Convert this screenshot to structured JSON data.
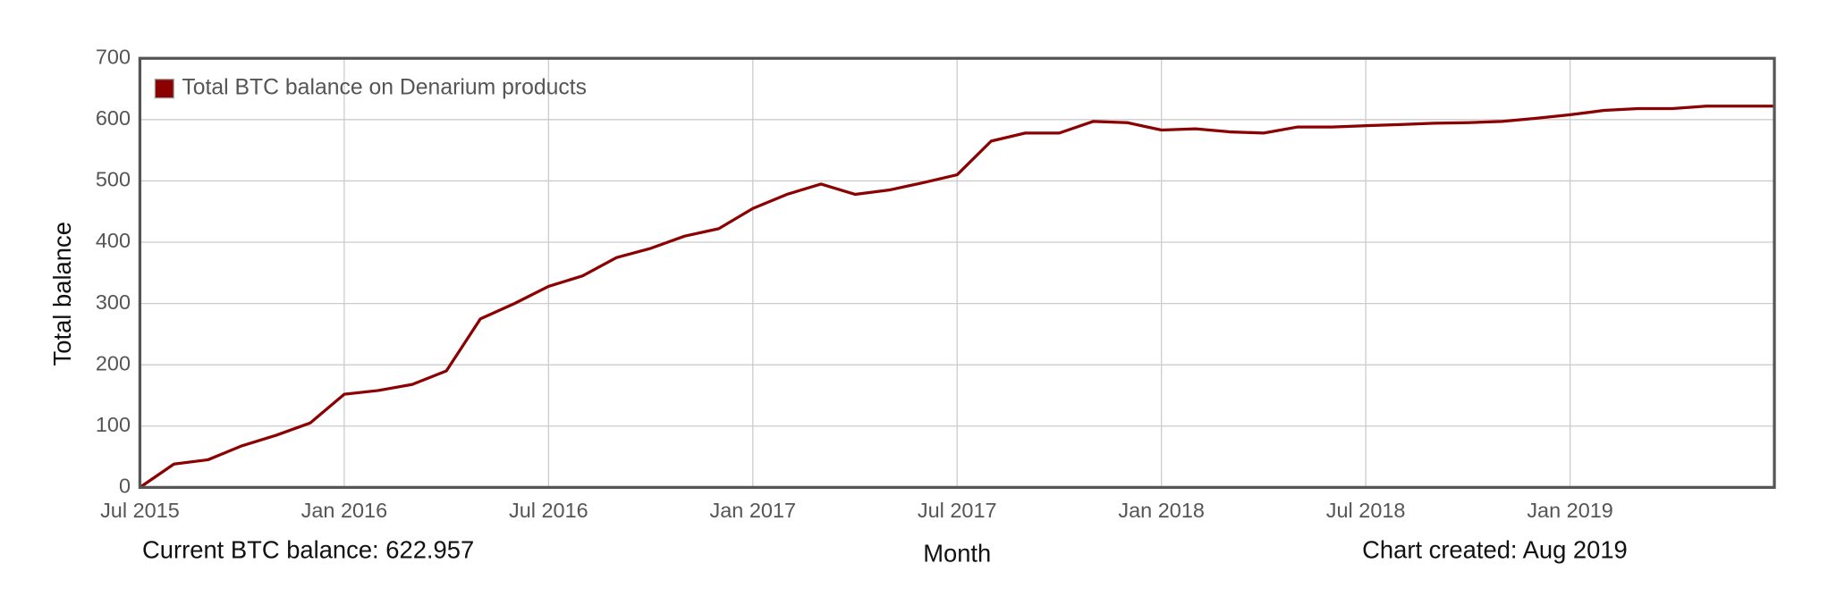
{
  "chart_data": {
    "type": "line",
    "ylabel": "Total balance",
    "xlabel": "Month",
    "footer_left": "Current BTC balance: 622.957",
    "footer_right": "Chart created: Aug 2019",
    "x": [
      "2015-07",
      "2015-08",
      "2015-09",
      "2015-10",
      "2015-11",
      "2015-12",
      "2016-01",
      "2016-02",
      "2016-03",
      "2016-04",
      "2016-05",
      "2016-06",
      "2016-07",
      "2016-08",
      "2016-09",
      "2016-10",
      "2016-11",
      "2016-12",
      "2017-01",
      "2017-02",
      "2017-03",
      "2017-04",
      "2017-05",
      "2017-06",
      "2017-07",
      "2017-08",
      "2017-09",
      "2017-10",
      "2017-11",
      "2017-12",
      "2018-01",
      "2018-02",
      "2018-03",
      "2018-04",
      "2018-05",
      "2018-06",
      "2018-07",
      "2018-08",
      "2018-09",
      "2018-10",
      "2018-11",
      "2018-12",
      "2019-01",
      "2019-02",
      "2019-03",
      "2019-04",
      "2019-05",
      "2019-06",
      "2019-07"
    ],
    "series": [
      {
        "name": "Total BTC balance on Denarium products",
        "color": "#8b0000",
        "values": [
          0,
          38,
          45,
          68,
          85,
          105,
          152,
          158,
          168,
          190,
          275,
          300,
          328,
          345,
          375,
          390,
          410,
          422,
          455,
          478,
          495,
          478,
          485,
          497,
          510,
          565,
          578,
          578,
          597,
          595,
          583,
          585,
          580,
          578,
          588,
          588,
          590,
          592,
          594,
          595,
          597,
          602,
          608,
          615,
          618,
          618,
          622,
          622,
          622
        ]
      }
    ],
    "xlim": [
      "2015-07",
      "2019-07"
    ],
    "xticks": [
      {
        "value": "2015-07",
        "label": "Jul 2015"
      },
      {
        "value": "2016-01",
        "label": "Jan 2016"
      },
      {
        "value": "2016-07",
        "label": "Jul 2016"
      },
      {
        "value": "2017-01",
        "label": "Jan 2017"
      },
      {
        "value": "2017-07",
        "label": "Jul 2017"
      },
      {
        "value": "2018-01",
        "label": "Jan 2018"
      },
      {
        "value": "2018-07",
        "label": "Jul 2018"
      },
      {
        "value": "2019-01",
        "label": "Jan 2019"
      }
    ],
    "ylim": [
      0,
      700
    ],
    "yticks": [
      0,
      100,
      200,
      300,
      400,
      500,
      600,
      700
    ],
    "grid": true,
    "legend": "top-left"
  }
}
